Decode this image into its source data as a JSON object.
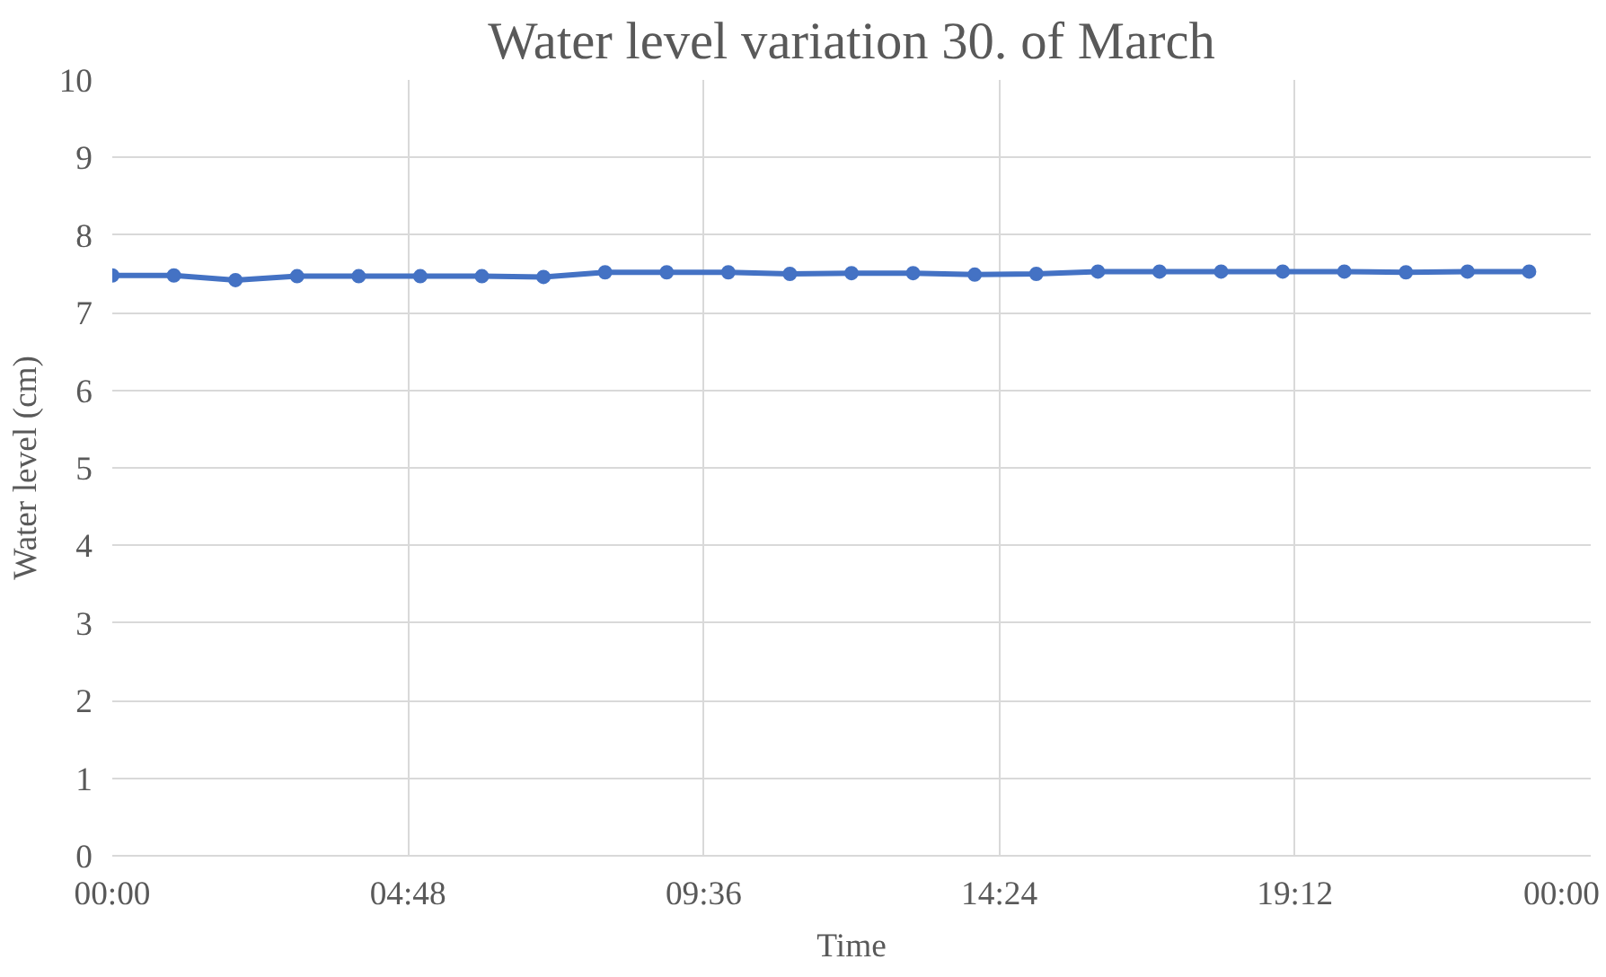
{
  "chart_data": {
    "type": "line",
    "title": "Water level variation 30. of March",
    "xlabel": "Time",
    "ylabel": "Water level (cm)",
    "x": [
      0,
      1,
      2,
      3,
      4,
      5,
      6,
      7,
      8,
      9,
      10,
      11,
      12,
      13,
      14,
      15,
      16,
      17,
      18,
      19,
      20,
      21,
      22,
      23
    ],
    "series": [
      {
        "color": "#4472c4",
        "values": [
          7.48,
          7.48,
          7.42,
          7.47,
          7.47,
          7.47,
          7.47,
          7.46,
          7.52,
          7.52,
          7.52,
          7.5,
          7.51,
          7.51,
          7.49,
          7.5,
          7.53,
          7.53,
          7.53,
          7.53,
          7.53,
          7.52,
          7.53,
          7.53
        ]
      }
    ],
    "xlim": [
      0,
      24
    ],
    "xticks": [
      {
        "value": 0,
        "label": "00:00"
      },
      {
        "value": 4.8,
        "label": "04:48"
      },
      {
        "value": 9.6,
        "label": "09:36"
      },
      {
        "value": 14.4,
        "label": "14:24"
      },
      {
        "value": 19.2,
        "label": "19:12"
      },
      {
        "value": 24,
        "label": "00:00"
      }
    ],
    "ylim": [
      0,
      10
    ],
    "yticks": [
      0,
      1,
      2,
      3,
      4,
      5,
      6,
      7,
      8,
      9,
      10
    ],
    "grid": true,
    "marker": "circle",
    "line_style": "solid"
  }
}
